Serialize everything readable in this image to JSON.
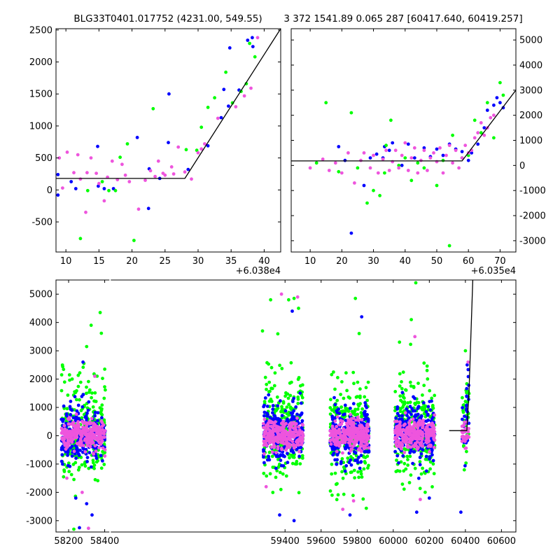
{
  "figure": {
    "title_left": "BLG33T0401.017752 (4231.00, 549.55)",
    "title_right": "3 372 1541.89 0.065 287 [60417.640, 60419.257]"
  },
  "colors": {
    "green": "#00ff00",
    "blue": "#0000ff",
    "magenta": "#ee55dd",
    "model": "#000000"
  },
  "chart_data": [
    {
      "type": "scatter",
      "panel": "top-left",
      "xlim": [
        8.5,
        42.5
      ],
      "ylim": [
        -970,
        2520
      ],
      "xticks": [
        10,
        15,
        20,
        25,
        30,
        35,
        40
      ],
      "yticks": [
        -500,
        0,
        500,
        1000,
        1500,
        2000,
        2500
      ],
      "x_offset_label": "+6.038e4",
      "series": [
        {
          "color": "blue",
          "points": [
            [
              8.8,
              240
            ],
            [
              8.8,
              -80
            ],
            [
              10.8,
              130
            ],
            [
              11.5,
              20
            ],
            [
              14.8,
              680
            ],
            [
              14.9,
              60
            ],
            [
              15.8,
              20
            ],
            [
              17.2,
              20
            ],
            [
              20.8,
              820
            ],
            [
              22.5,
              -290
            ],
            [
              22.6,
              330
            ],
            [
              24.2,
              180
            ],
            [
              25.5,
              740
            ],
            [
              25.6,
              1500
            ],
            [
              28.5,
              320
            ],
            [
              31.5,
              690
            ],
            [
              33.5,
              1130
            ],
            [
              33.9,
              1570
            ],
            [
              34.6,
              1310
            ],
            [
              34.8,
              2220
            ],
            [
              36.2,
              1560
            ],
            [
              37.5,
              2340
            ],
            [
              38.2,
              2380
            ],
            [
              38.3,
              2240
            ]
          ]
        },
        {
          "color": "green",
          "points": [
            [
              12.2,
              -760
            ],
            [
              13.3,
              -10
            ],
            [
              15.5,
              130
            ],
            [
              16.5,
              -10
            ],
            [
              17.5,
              -10
            ],
            [
              18.2,
              510
            ],
            [
              19.3,
              720
            ],
            [
              20.3,
              -790
            ],
            [
              23.2,
              1270
            ],
            [
              28.2,
              630
            ],
            [
              29.8,
              620
            ],
            [
              30.5,
              980
            ],
            [
              31.5,
              1290
            ],
            [
              32.5,
              1440
            ],
            [
              34.2,
              1840
            ],
            [
              35.2,
              1360
            ],
            [
              36.5,
              1540
            ],
            [
              37.3,
              1660
            ],
            [
              37.8,
              2290
            ],
            [
              38.6,
              2080
            ]
          ]
        },
        {
          "color": "magenta",
          "points": [
            [
              9.0,
              500
            ],
            [
              9.5,
              30
            ],
            [
              10.2,
              590
            ],
            [
              11.2,
              270
            ],
            [
              11.8,
              550
            ],
            [
              12.2,
              170
            ],
            [
              13.0,
              -350
            ],
            [
              13.2,
              270
            ],
            [
              13.8,
              500
            ],
            [
              14.6,
              260
            ],
            [
              15.0,
              100
            ],
            [
              15.8,
              -170
            ],
            [
              16.3,
              200
            ],
            [
              17.0,
              450
            ],
            [
              17.8,
              160
            ],
            [
              18.5,
              400
            ],
            [
              19.0,
              230
            ],
            [
              19.6,
              130
            ],
            [
              21.0,
              -300
            ],
            [
              22.0,
              150
            ],
            [
              22.8,
              300
            ],
            [
              23.5,
              210
            ],
            [
              24.0,
              450
            ],
            [
              24.7,
              260
            ],
            [
              25.0,
              230
            ],
            [
              26.0,
              360
            ],
            [
              26.3,
              250
            ],
            [
              27.0,
              670
            ],
            [
              28.0,
              280
            ],
            [
              29.0,
              170
            ],
            [
              30.0,
              580
            ],
            [
              30.5,
              640
            ],
            [
              31.0,
              720
            ],
            [
              33.0,
              1120
            ],
            [
              35.7,
              1300
            ],
            [
              37.0,
              1470
            ],
            [
              38.0,
              1590
            ],
            [
              39.0,
              2380
            ]
          ]
        }
      ],
      "model_line": [
        [
          8.5,
          180
        ],
        [
          28.0,
          180
        ],
        [
          42.5,
          2520
        ]
      ]
    },
    {
      "type": "scatter",
      "panel": "top-right",
      "xlim": [
        4,
        75
      ],
      "ylim": [
        -3450,
        5450
      ],
      "xticks": [
        10,
        20,
        30,
        40,
        50,
        60,
        70
      ],
      "yticks": [
        -3000,
        -2000,
        -1000,
        0,
        1000,
        2000,
        3000,
        4000,
        5000
      ],
      "x_offset_label": "+6.035e4",
      "series": [
        {
          "color": "blue",
          "points": [
            [
              19,
              750
            ],
            [
              21,
              200
            ],
            [
              23,
              -2700
            ],
            [
              27,
              -800
            ],
            [
              29,
              300
            ],
            [
              31,
              450
            ],
            [
              33,
              300
            ],
            [
              33.5,
              750
            ],
            [
              35,
              600
            ],
            [
              36,
              900
            ],
            [
              39,
              0
            ],
            [
              41,
              850
            ],
            [
              43,
              300
            ],
            [
              46,
              700
            ],
            [
              48,
              350
            ],
            [
              50,
              650
            ],
            [
              52,
              400
            ],
            [
              54,
              850
            ],
            [
              56,
              650
            ],
            [
              58,
              550
            ],
            [
              60,
              200
            ],
            [
              61,
              500
            ],
            [
              63,
              850
            ],
            [
              65,
              1500
            ],
            [
              66,
              2200
            ],
            [
              68,
              2400
            ],
            [
              69,
              2700
            ],
            [
              70,
              2500
            ],
            [
              71,
              2300
            ]
          ]
        },
        {
          "color": "green",
          "points": [
            [
              12,
              100
            ],
            [
              15,
              2500
            ],
            [
              19,
              -250
            ],
            [
              23,
              2100
            ],
            [
              25,
              -100
            ],
            [
              28,
              -1500
            ],
            [
              30,
              -1000
            ],
            [
              32,
              -1200
            ],
            [
              33.5,
              -300
            ],
            [
              34,
              800
            ],
            [
              35.5,
              1800
            ],
            [
              38,
              0
            ],
            [
              40,
              300
            ],
            [
              42,
              -600
            ],
            [
              44,
              100
            ],
            [
              46,
              -100
            ],
            [
              50,
              -800
            ],
            [
              52,
              200
            ],
            [
              54,
              -3200
            ],
            [
              55,
              1200
            ],
            [
              58,
              300
            ],
            [
              60,
              400
            ],
            [
              62,
              1800
            ],
            [
              64,
              1300
            ],
            [
              66,
              2500
            ],
            [
              68,
              1100
            ],
            [
              70,
              3300
            ],
            [
              71,
              2800
            ]
          ]
        },
        {
          "color": "magenta",
          "points": [
            [
              10,
              -100
            ],
            [
              14,
              250
            ],
            [
              16,
              -200
            ],
            [
              18,
              100
            ],
            [
              20,
              -300
            ],
            [
              22,
              500
            ],
            [
              24,
              -700
            ],
            [
              26,
              200
            ],
            [
              27,
              500
            ],
            [
              29,
              -100
            ],
            [
              30,
              400
            ],
            [
              31.5,
              -300
            ],
            [
              33,
              250
            ],
            [
              34,
              600
            ],
            [
              35,
              -200
            ],
            [
              36,
              150
            ],
            [
              37,
              600
            ],
            [
              38,
              -100
            ],
            [
              39,
              400
            ],
            [
              40,
              900
            ],
            [
              41,
              -200
            ],
            [
              42,
              300
            ],
            [
              43,
              700
            ],
            [
              44,
              -300
            ],
            [
              45,
              200
            ],
            [
              46,
              600
            ],
            [
              47,
              -200
            ],
            [
              48,
              300
            ],
            [
              49,
              500
            ],
            [
              50,
              150
            ],
            [
              51,
              700
            ],
            [
              52,
              -300
            ],
            [
              53,
              400
            ],
            [
              54,
              800
            ],
            [
              55,
              100
            ],
            [
              56,
              600
            ],
            [
              57,
              -100
            ],
            [
              58,
              300
            ],
            [
              59,
              800
            ],
            [
              60,
              500
            ],
            [
              61,
              600
            ],
            [
              62,
              1100
            ],
            [
              63,
              1300
            ],
            [
              64,
              1700
            ],
            [
              65,
              1200
            ],
            [
              66,
              1500
            ],
            [
              67,
              1900
            ],
            [
              68,
              2000
            ]
          ]
        }
      ],
      "model_line": [
        [
          4,
          180
        ],
        [
          58,
          180
        ],
        [
          75,
          3000
        ]
      ]
    },
    {
      "type": "scatter",
      "panel": "bottom",
      "xlim": [
        58130,
        60680
      ],
      "ylim": [
        -3400,
        5500
      ],
      "xticks": [
        58200,
        58400,
        59400,
        59600,
        59800,
        60000,
        60200,
        60400,
        60600
      ],
      "yticks": [
        -3000,
        -2000,
        -1000,
        0,
        1000,
        2000,
        3000,
        4000,
        5000
      ],
      "seasons": [
        [
          58160,
          58405
        ],
        [
          59280,
          59500
        ],
        [
          59650,
          59865
        ],
        [
          60010,
          60230
        ],
        [
          60380,
          60420
        ]
      ],
      "outliers": [
        {
          "color": "green",
          "points": [
            [
              58285,
              2550
            ],
            [
              58300,
              3150
            ],
            [
              58325,
              3900
            ],
            [
              58375,
              4350
            ],
            [
              59320,
              4800
            ],
            [
              59360,
              3600
            ],
            [
              59420,
              4800
            ],
            [
              59450,
              4850
            ],
            [
              59475,
              4500
            ],
            [
              59790,
              4850
            ],
            [
              60100,
              4100
            ],
            [
              60125,
              5400
            ],
            [
              60400,
              3000
            ],
            [
              59275,
              3700
            ],
            [
              58205,
              2150
            ],
            [
              58400,
              2350
            ]
          ]
        },
        {
          "color": "blue",
          "points": [
            [
              58240,
              -2200
            ],
            [
              58260,
              -3250
            ],
            [
              58300,
              -2400
            ],
            [
              58330,
              -2800
            ],
            [
              59370,
              -2800
            ],
            [
              59450,
              -3000
            ],
            [
              59760,
              -2800
            ],
            [
              60130,
              -2700
            ],
            [
              60200,
              -2200
            ],
            [
              60375,
              -2700
            ],
            [
              58280,
              2600
            ],
            [
              59440,
              4400
            ],
            [
              59825,
              4200
            ],
            [
              60410,
              2500
            ]
          ]
        },
        {
          "color": "magenta",
          "points": [
            [
              58310,
              -3270
            ],
            [
              58275,
              -2000
            ],
            [
              58345,
              2100
            ],
            [
              59380,
              5000
            ],
            [
              59470,
              4900
            ],
            [
              59295,
              -1800
            ],
            [
              59780,
              -2300
            ],
            [
              59720,
              -2600
            ],
            [
              60120,
              3500
            ],
            [
              60150,
              -2250
            ],
            [
              60415,
              2600
            ],
            [
              58190,
              -1500
            ]
          ]
        }
      ],
      "model_line": [
        [
          60310,
          180
        ],
        [
          60408,
          180
        ],
        [
          60420,
          1541.89
        ],
        [
          60441,
          5500
        ]
      ]
    }
  ]
}
